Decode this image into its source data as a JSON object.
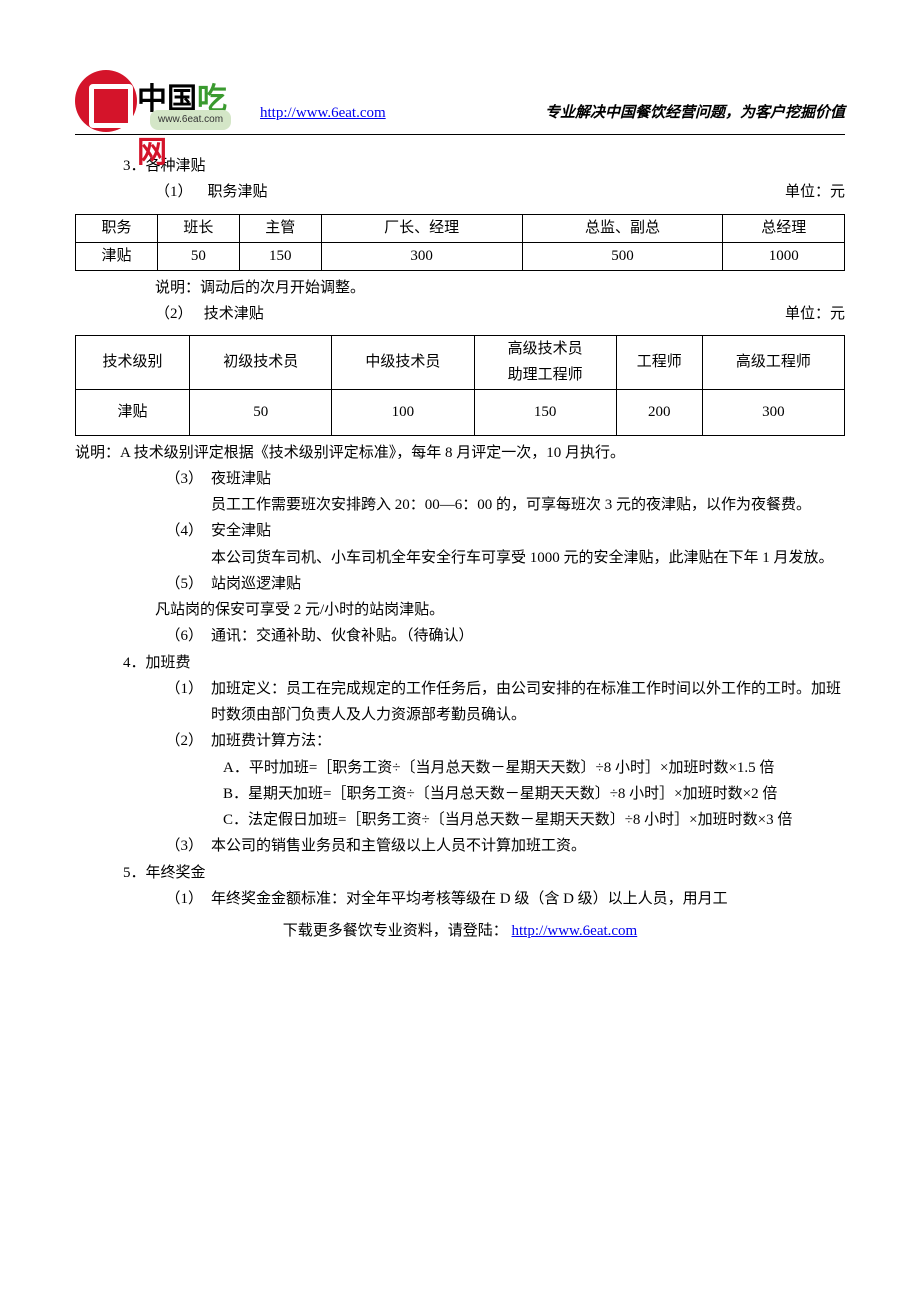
{
  "header": {
    "logo_text_parts": [
      [
        "中",
        "b"
      ],
      [
        "国",
        "b"
      ],
      [
        "吃",
        "g"
      ],
      [
        "网",
        "r"
      ]
    ],
    "logo_sub": "www.6eat.com",
    "url": "http://www.6eat.com",
    "slogan": "专业解决中国餐饮经营问题，为客户挖掘价值"
  },
  "s3": {
    "heading": "3．各种津贴",
    "i1": {
      "num": "（1）",
      "label": "职务津贴",
      "unit": "单位：元"
    },
    "table1": {
      "head": [
        "职务",
        "班长",
        "主管",
        "厂长、经理",
        "总监、副总",
        "总经理"
      ],
      "row": [
        "津贴",
        "50",
        "150",
        "300",
        "500",
        "1000"
      ]
    },
    "note1": "说明：调动后的次月开始调整。",
    "i2": {
      "num": "（2）",
      "label": "技术津贴",
      "unit": "单位：元"
    },
    "table2": {
      "head": [
        "技术级别",
        "初级技术员",
        "中级技术员",
        "高级技术员\n助理工程师",
        "工程师",
        "高级工程师"
      ],
      "row": [
        "津贴",
        "50",
        "100",
        "150",
        "200",
        "300"
      ]
    },
    "note2": "说明：A 技术级别评定根据《技术级别评定标准》，每年 8 月评定一次，10 月执行。",
    "i3": {
      "num": "（3）",
      "label": "夜班津贴",
      "body": "员工工作需要班次安排跨入 20：00—6：00 的，可享每班次 3 元的夜津贴，以作为夜餐费。"
    },
    "i4": {
      "num": "（4）",
      "label": " 安全津贴",
      "body": "本公司货车司机、小车司机全年安全行车可享受 1000 元的安全津贴，此津贴在下年 1 月发放。"
    },
    "i5": {
      "num": "（5）",
      "label": "站岗巡逻津贴",
      "body": "凡站岗的保安可享受 2 元/小时的站岗津贴。"
    },
    "i6": {
      "num": "（6）",
      "label": "通讯：交通补助、伙食补贴。（待确认）"
    }
  },
  "s4": {
    "heading": "4．加班费",
    "i1": {
      "num": "（1）",
      "body": "加班定义：员工在完成规定的工作任务后，由公司安排的在标准工作时间以外工作的工时。加班时数须由部门负责人及人力资源部考勤员确认。"
    },
    "i2": {
      "num": "（2）",
      "body": "加班费计算方法：",
      "A": "A．平时加班=［职务工资÷〔当月总天数－星期天天数〕÷8 小时］×加班时数×1.5 倍",
      "B": "B．星期天加班=［职务工资÷〔当月总天数－星期天天数〕÷8 小时］×加班时数×2 倍",
      "C": "C．法定假日加班=［职务工资÷〔当月总天数－星期天天数〕÷8 小时］×加班时数×3 倍"
    },
    "i3": {
      "num": "（3）",
      "body": "本公司的销售业务员和主管级以上人员不计算加班工资。"
    }
  },
  "s5": {
    "heading": "5．年终奖金",
    "i1": {
      "num": "（1）",
      "body": "年终奖金金额标准：对全年平均考核等级在 D 级（含 D 级）以上人员，用月工"
    }
  },
  "footer": {
    "prefix": "下载更多餐饮专业资料，请登陆：",
    "url": "http://www.6eat.com"
  }
}
